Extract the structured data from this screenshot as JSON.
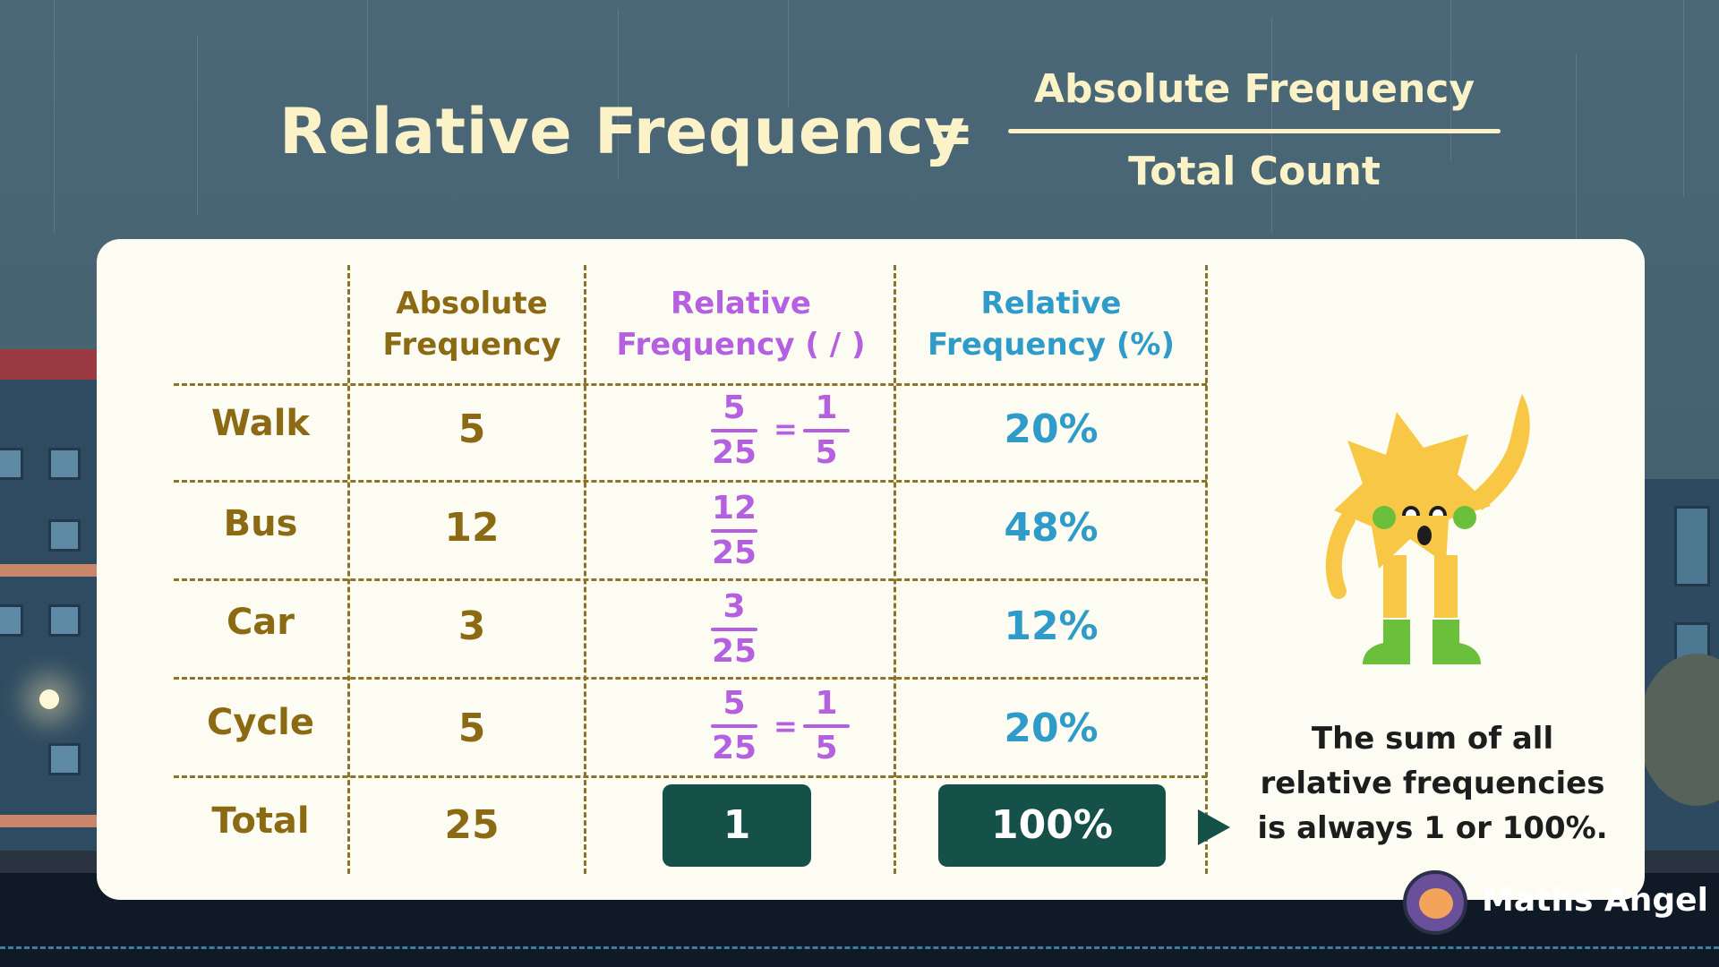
{
  "formula": {
    "lhs": "Relative Frequency",
    "equals": "=",
    "numerator": "Absolute Frequency",
    "denominator": "Total Count"
  },
  "table": {
    "headers": {
      "absolute": [
        "Absolute",
        "Frequency"
      ],
      "relative_fraction": [
        "Relative",
        "Frequency ( / )"
      ],
      "relative_percent": [
        "Relative",
        "Frequency (%)"
      ]
    },
    "rows": [
      {
        "label": "Walk",
        "absolute": "5",
        "fraction": {
          "num": "5",
          "den": "25"
        },
        "simplified": {
          "num": "1",
          "den": "5"
        },
        "equals": "=",
        "percent": "20%"
      },
      {
        "label": "Bus",
        "absolute": "12",
        "fraction": {
          "num": "12",
          "den": "25"
        },
        "percent": "48%"
      },
      {
        "label": "Car",
        "absolute": "3",
        "fraction": {
          "num": "3",
          "den": "25"
        },
        "percent": "12%"
      },
      {
        "label": "Cycle",
        "absolute": "5",
        "fraction": {
          "num": "5",
          "den": "25"
        },
        "simplified": {
          "num": "1",
          "den": "5"
        },
        "equals": "=",
        "percent": "20%"
      }
    ],
    "total": {
      "label": "Total",
      "absolute": "25",
      "relative_fraction": "1",
      "relative_percent": "100%"
    }
  },
  "note": [
    "The sum of all",
    "relative frequencies",
    "is always 1 or 100%."
  ],
  "brand": {
    "name": "Maths Angel"
  },
  "colors": {
    "gold": "#8b6a13",
    "purple": "#b460e0",
    "blue": "#2f9bc9",
    "dark_green": "#155049",
    "cream": "#fbf2c8"
  },
  "icons": {
    "mascot": "star-character-icon",
    "arrow": "arrow-right-icon",
    "logo": "maths-angel-logo-icon"
  }
}
